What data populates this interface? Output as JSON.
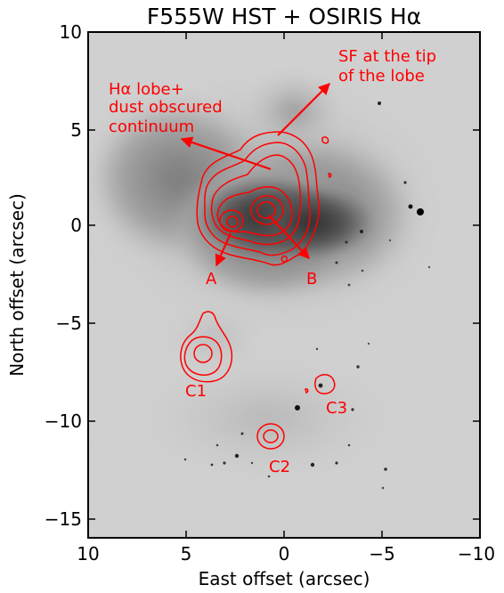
{
  "figure": {
    "title": "F555W HST + OSIRIS Hα",
    "xlabel": "East offset (arcsec)",
    "ylabel": "North offset (arcsec)",
    "xticks": [
      "10",
      "5",
      "0",
      "−5",
      "−10"
    ],
    "yticks": [
      "10",
      "5",
      "0",
      "−5",
      "−10",
      "−15"
    ],
    "annotations": {
      "lobe": [
        "Hα lobe+",
        "dust obscured",
        "continuum"
      ],
      "sf": [
        "SF at the tip",
        "of the lobe"
      ],
      "A": "A",
      "B": "B",
      "C1": "C1",
      "C2": "C2",
      "C3": "C3"
    },
    "colors": {
      "contour": "#ff0000",
      "frame": "#000000"
    }
  }
}
